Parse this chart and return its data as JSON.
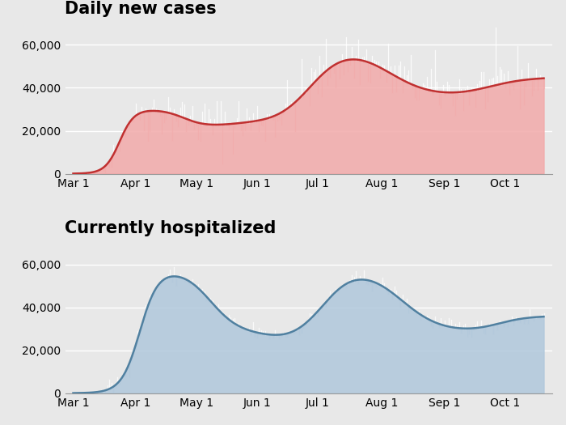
{
  "title_cases": "Daily new cases",
  "title_hosp": "Currently hospitalized",
  "background_color": "#e8e8e8",
  "plot_bg_color": "#e8e8e8",
  "cases_fill_color": "#f2aaaa",
  "cases_line_color": "#c03030",
  "hosp_fill_color": "#b0c8dc",
  "hosp_line_color": "#5080a0",
  "yticks": [
    0,
    20000,
    40000,
    60000
  ],
  "ytick_labels": [
    "0",
    "20,000",
    "40,000",
    "60,000"
  ],
  "xtick_labels": [
    "Mar 1",
    "Apr 1",
    "May 1",
    "Jun 1",
    "Jul 1",
    "Aug 1",
    "Sep 1",
    "Oct 1"
  ],
  "xtick_positions": [
    0,
    31,
    61,
    91,
    121,
    153,
    184,
    214
  ],
  "ylim": [
    0,
    72000
  ],
  "n_days": 234,
  "title_fontsize": 15,
  "tick_fontsize": 10,
  "title_fontweight": "bold",
  "grid_color": "#ffffff"
}
